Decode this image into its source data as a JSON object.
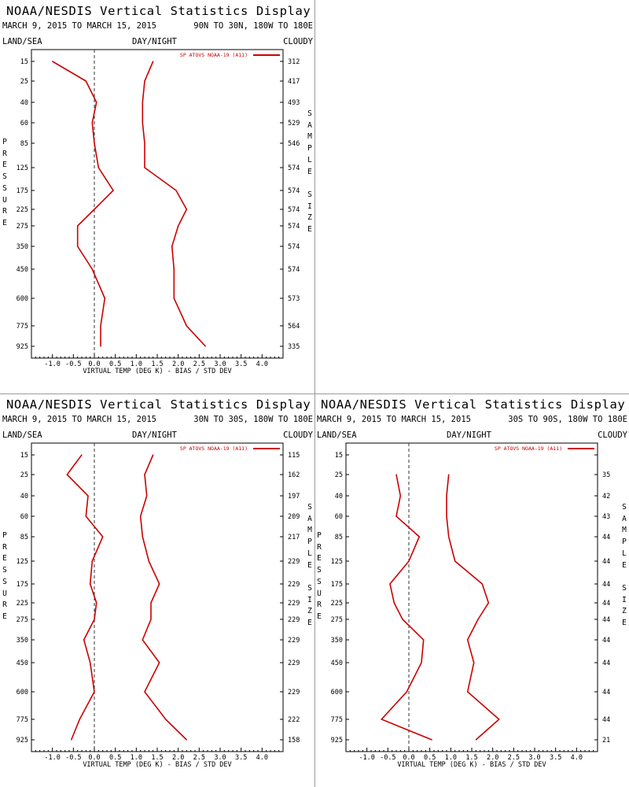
{
  "panels": [
    {
      "title": "NOAA/NESDIS Vertical Statistics Display",
      "date_range": "MARCH 9, 2015 TO MARCH 15, 2015",
      "region": "90N TO 30N, 180W TO 180E",
      "header_left": "LAND/SEA",
      "header_center": "DAY/NIGHT",
      "header_right": "CLOUDY",
      "y_axis_label": "PRESSURE",
      "right_axis_label": "SAMPLE SIZE",
      "pressure_levels": [
        "15",
        "25",
        "40",
        "60",
        "85",
        "125",
        "175",
        "225",
        "275",
        "350",
        "450",
        "600",
        "775",
        "925"
      ],
      "sample_sizes": [
        "312",
        "417",
        "493",
        "529",
        "546",
        "574",
        "574",
        "574",
        "574",
        "574",
        "574",
        "573",
        "564",
        "335"
      ],
      "legend": "SP ATOVS NOAA-19 (A11)",
      "line_color": "#cc0000",
      "x_tick_labels": [
        "-1.0",
        "-0.5",
        "0.0",
        "0.5",
        "1.0",
        "1.5",
        "2.0",
        "2.5",
        "3.0",
        "3.5",
        "4.0"
      ],
      "x_axis_label": "VIRTUAL TEMP (DEG K) - BIAS / STD DEV",
      "chart_data": {
        "type": "line",
        "xlim": [
          -1.5,
          4.5
        ],
        "y_categories": [
          "15",
          "25",
          "40",
          "60",
          "85",
          "125",
          "175",
          "225",
          "275",
          "350",
          "450",
          "600",
          "775",
          "925"
        ],
        "series": [
          {
            "values": [
              -1.0,
              -0.2,
              0.05,
              -0.05,
              0.0,
              0.1,
              0.45,
              0.0,
              -0.4,
              -0.4,
              -0.05,
              0.25,
              0.15,
              0.15
            ]
          },
          {
            "values": [
              1.4,
              1.2,
              1.15,
              1.15,
              1.2,
              1.2,
              1.95,
              2.2,
              2.0,
              1.85,
              1.9,
              1.9,
              2.2,
              2.65
            ]
          }
        ]
      }
    },
    {
      "title": "NOAA/NESDIS Vertical Statistics Display",
      "date_range": "MARCH 9, 2015 TO MARCH 15, 2015",
      "region": "30N TO 30S, 180W TO 180E",
      "header_left": "LAND/SEA",
      "header_center": "DAY/NIGHT",
      "header_right": "CLOUDY",
      "y_axis_label": "PRESSURE",
      "right_axis_label": "SAMPLE SIZE",
      "pressure_levels": [
        "15",
        "25",
        "40",
        "60",
        "85",
        "125",
        "175",
        "225",
        "275",
        "350",
        "450",
        "600",
        "775",
        "925"
      ],
      "sample_sizes": [
        "115",
        "162",
        "197",
        "209",
        "217",
        "229",
        "229",
        "229",
        "229",
        "229",
        "229",
        "229",
        "222",
        "158"
      ],
      "legend": "SP ATOVS NOAA-19 (A11)",
      "line_color": "#cc0000",
      "x_tick_labels": [
        "-1.0",
        "-0.5",
        "0.0",
        "0.5",
        "1.0",
        "1.5",
        "2.0",
        "2.5",
        "3.0",
        "3.5",
        "4.0"
      ],
      "x_axis_label": "VIRTUAL TEMP (DEG K) - BIAS / STD DEV",
      "chart_data": {
        "type": "line",
        "xlim": [
          -1.5,
          4.5
        ],
        "y_categories": [
          "15",
          "25",
          "40",
          "60",
          "85",
          "125",
          "175",
          "225",
          "275",
          "350",
          "450",
          "600",
          "775",
          "925"
        ],
        "series": [
          {
            "values": [
              -0.3,
              -0.65,
              -0.15,
              -0.2,
              0.2,
              -0.05,
              -0.1,
              0.05,
              0.0,
              -0.25,
              -0.1,
              0.0,
              -0.35,
              -0.55
            ]
          },
          {
            "values": [
              1.4,
              1.2,
              1.25,
              1.1,
              1.15,
              1.3,
              1.55,
              1.35,
              1.35,
              1.15,
              1.55,
              1.2,
              1.7,
              2.2
            ]
          }
        ]
      }
    },
    {
      "title": "NOAA/NESDIS Vertical Statistics Display",
      "date_range": "MARCH 9, 2015 TO MARCH 15, 2015",
      "region": "30S TO 90S, 180W TO 180E",
      "header_left": "LAND/SEA",
      "header_center": "DAY/NIGHT",
      "header_right": "CLOUDY",
      "y_axis_label": "PRESSURE",
      "right_axis_label": "SAMPLE SIZE",
      "pressure_levels": [
        "15",
        "25",
        "40",
        "60",
        "85",
        "125",
        "175",
        "225",
        "275",
        "350",
        "450",
        "600",
        "775",
        "925"
      ],
      "sample_sizes": [
        "",
        "35",
        "42",
        "43",
        "44",
        "44",
        "44",
        "44",
        "44",
        "44",
        "44",
        "44",
        "44",
        "21"
      ],
      "legend": "SP ATOVS NOAA-19 (A11)",
      "line_color": "#cc0000",
      "x_tick_labels": [
        "-1.0",
        "-0.5",
        "0.0",
        "0.5",
        "1.0",
        "1.5",
        "2.0",
        "2.5",
        "3.0",
        "3.5",
        "4.0"
      ],
      "x_axis_label": "VIRTUAL TEMP (DEG K) - BIAS / STD DEV",
      "chart_data": {
        "type": "line",
        "xlim": [
          -1.5,
          4.5
        ],
        "y_categories": [
          "15",
          "25",
          "40",
          "60",
          "85",
          "125",
          "175",
          "225",
          "275",
          "350",
          "450",
          "600",
          "775",
          "925"
        ],
        "series": [
          {
            "values": [
              null,
              -0.3,
              -0.2,
              -0.3,
              0.25,
              0.0,
              -0.45,
              -0.35,
              -0.15,
              0.35,
              0.3,
              -0.05,
              -0.65,
              0.55
            ]
          },
          {
            "values": [
              null,
              0.95,
              0.9,
              0.9,
              0.95,
              1.1,
              1.75,
              1.9,
              1.65,
              1.4,
              1.55,
              1.4,
              2.15,
              1.6
            ]
          }
        ]
      }
    }
  ]
}
